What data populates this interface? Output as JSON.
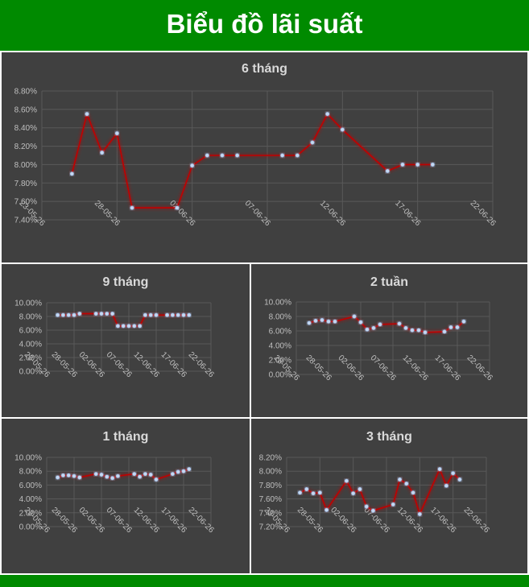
{
  "header": {
    "title": "Biểu đồ lãi suất"
  },
  "colors": {
    "header_bg": "#008a00",
    "panel_bg": "#404040",
    "line": "#c00000",
    "marker": "#c6d9f1",
    "grid": "#595959"
  },
  "chart_data": [
    {
      "type": "line",
      "title": "6 tháng",
      "x_tick_labels": [
        "23-05-26",
        "28-05-26",
        "02-06-26",
        "07-06-26",
        "12-06-26",
        "17-06-26",
        "22-06-26"
      ],
      "y_tick_labels": [
        "7.40%",
        "7.60%",
        "7.80%",
        "8.00%",
        "8.20%",
        "8.40%",
        "8.60%",
        "8.80%"
      ],
      "xlim": [
        "2026-05-23",
        "2026-06-22"
      ],
      "ylim": [
        7.4,
        8.8
      ],
      "x": [
        "2026-05-25",
        "2026-05-26",
        "2026-05-27",
        "2026-05-28",
        "2026-05-29",
        "2026-06-01",
        "2026-06-02",
        "2026-06-03",
        "2026-06-04",
        "2026-06-05",
        "2026-06-08",
        "2026-06-09",
        "2026-06-10",
        "2026-06-11",
        "2026-06-12",
        "2026-06-15",
        "2026-06-16",
        "2026-06-17",
        "2026-06-18"
      ],
      "y": [
        7.9,
        8.55,
        8.13,
        8.34,
        7.53,
        7.53,
        7.99,
        8.1,
        8.1,
        8.1,
        8.1,
        8.1,
        8.24,
        8.55,
        8.38,
        7.93,
        8.0,
        8.0,
        8.0
      ]
    },
    {
      "type": "line",
      "title": "9 tháng",
      "x_tick_labels": [
        "23-05-26",
        "28-05-26",
        "02-06-26",
        "07-06-26",
        "12-06-26",
        "17-06-26",
        "22-06-26"
      ],
      "y_tick_labels": [
        "0.00%",
        "2.00%",
        "4.00%",
        "6.00%",
        "8.00%",
        "10.00%"
      ],
      "xlim": [
        "2026-05-23",
        "2026-06-22"
      ],
      "ylim": [
        0,
        10
      ],
      "x": [
        "2026-05-25",
        "2026-05-26",
        "2026-05-27",
        "2026-05-28",
        "2026-05-29",
        "2026-06-01",
        "2026-06-02",
        "2026-06-03",
        "2026-06-04",
        "2026-06-05",
        "2026-06-06",
        "2026-06-07",
        "2026-06-08",
        "2026-06-09",
        "2026-06-10",
        "2026-06-11",
        "2026-06-12",
        "2026-06-14",
        "2026-06-15",
        "2026-06-16",
        "2026-06-17",
        "2026-06-18"
      ],
      "y": [
        8.2,
        8.2,
        8.2,
        8.2,
        8.4,
        8.4,
        8.4,
        8.4,
        8.4,
        6.6,
        6.6,
        6.6,
        6.6,
        6.6,
        8.2,
        8.2,
        8.2,
        8.2,
        8.2,
        8.2,
        8.2,
        8.2
      ]
    },
    {
      "type": "line",
      "title": "2 tuần",
      "x_tick_labels": [
        "23-05-26",
        "28-05-26",
        "02-06-26",
        "07-06-26",
        "12-06-26",
        "17-06-26",
        "22-06-26"
      ],
      "y_tick_labels": [
        "0.00%",
        "2.00%",
        "4.00%",
        "6.00%",
        "8.00%",
        "10.00%"
      ],
      "xlim": [
        "2026-05-23",
        "2026-06-22"
      ],
      "ylim": [
        0,
        10
      ],
      "x": [
        "2026-05-25",
        "2026-05-26",
        "2026-05-27",
        "2026-05-28",
        "2026-05-29",
        "2026-06-01",
        "2026-06-02",
        "2026-06-03",
        "2026-06-04",
        "2026-06-05",
        "2026-06-08",
        "2026-06-09",
        "2026-06-10",
        "2026-06-11",
        "2026-06-12",
        "2026-06-15",
        "2026-06-16",
        "2026-06-17",
        "2026-06-18"
      ],
      "y": [
        7.1,
        7.4,
        7.5,
        7.3,
        7.3,
        8.0,
        7.2,
        6.2,
        6.4,
        6.9,
        7.0,
        6.4,
        6.1,
        6.1,
        5.8,
        5.9,
        6.5,
        6.5,
        7.3
      ]
    },
    {
      "type": "line",
      "title": "1 tháng",
      "x_tick_labels": [
        "23-05-26",
        "28-05-26",
        "02-06-26",
        "07-06-26",
        "12-06-26",
        "17-06-26",
        "22-06-26"
      ],
      "y_tick_labels": [
        "0.00%",
        "2.00%",
        "4.00%",
        "6.00%",
        "8.00%",
        "10.00%"
      ],
      "xlim": [
        "2026-05-23",
        "2026-06-22"
      ],
      "ylim": [
        0,
        10
      ],
      "x": [
        "2026-05-25",
        "2026-05-26",
        "2026-05-27",
        "2026-05-28",
        "2026-05-29",
        "2026-06-01",
        "2026-06-02",
        "2026-06-03",
        "2026-06-04",
        "2026-06-05",
        "2026-06-08",
        "2026-06-09",
        "2026-06-10",
        "2026-06-11",
        "2026-06-12",
        "2026-06-15",
        "2026-06-16",
        "2026-06-17",
        "2026-06-18"
      ],
      "y": [
        7.1,
        7.4,
        7.4,
        7.3,
        7.1,
        7.6,
        7.5,
        7.2,
        7.0,
        7.3,
        7.6,
        7.2,
        7.6,
        7.5,
        6.8,
        7.6,
        7.9,
        8.0,
        8.3
      ]
    },
    {
      "type": "line",
      "title": "3 tháng",
      "x_tick_labels": [
        "23-05-26",
        "28-05-26",
        "02-06-26",
        "07-06-26",
        "12-06-26",
        "17-06-26",
        "22-06-26"
      ],
      "y_tick_labels": [
        "7.20%",
        "7.40%",
        "7.60%",
        "7.80%",
        "8.00%",
        "8.20%"
      ],
      "xlim": [
        "2026-05-23",
        "2026-06-22"
      ],
      "ylim": [
        7.2,
        8.2
      ],
      "x": [
        "2026-05-25",
        "2026-05-26",
        "2026-05-27",
        "2026-05-28",
        "2026-05-29",
        "2026-06-01",
        "2026-06-02",
        "2026-06-03",
        "2026-06-04",
        "2026-06-05",
        "2026-06-08",
        "2026-06-09",
        "2026-06-10",
        "2026-06-11",
        "2026-06-12",
        "2026-06-15",
        "2026-06-16",
        "2026-06-17",
        "2026-06-18"
      ],
      "y": [
        7.69,
        7.74,
        7.68,
        7.69,
        7.44,
        7.86,
        7.68,
        7.74,
        7.49,
        7.43,
        7.52,
        7.88,
        7.82,
        7.69,
        7.38,
        8.03,
        7.79,
        7.97,
        7.88
      ]
    }
  ]
}
